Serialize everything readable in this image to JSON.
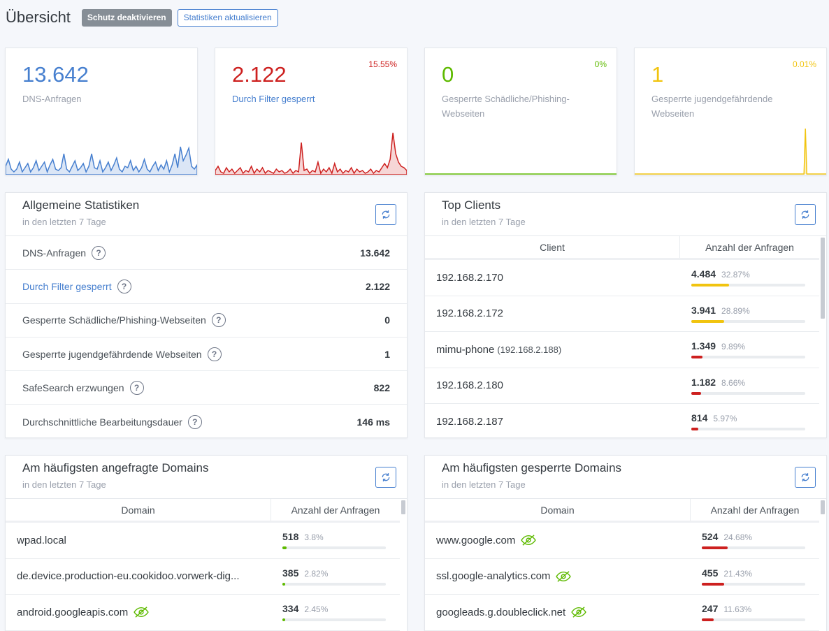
{
  "header": {
    "title": "Übersicht",
    "disable_protection": "Schutz deaktivieren",
    "refresh_stats": "Statistiken aktualisieren"
  },
  "stats": [
    {
      "value": "13.642",
      "label": "DNS-Anfragen",
      "percent": "",
      "color": "#467fcf"
    },
    {
      "value": "2.122",
      "label": "Durch Filter gesperrt",
      "percent": "15.55%",
      "color": "#cd201f"
    },
    {
      "value": "0",
      "label": "Gesperrte Schädliche/Phishing-Webseiten",
      "percent": "0%",
      "color": "#5eba00"
    },
    {
      "value": "1",
      "label": "Gesperrte jugendgefährdende Webseiten",
      "percent": "0.01%",
      "color": "#f1c40f"
    }
  ],
  "general": {
    "title": "Allgemeine Statistiken",
    "subtitle": "in den letzten 7 Tage",
    "rows": [
      {
        "label": "DNS-Anfragen",
        "value": "13.642"
      },
      {
        "label": "Durch Filter gesperrt",
        "value": "2.122"
      },
      {
        "label": "Gesperrte Schädliche/Phishing-Webseiten",
        "value": "0"
      },
      {
        "label": "Gesperrte jugendgefährdende Webseiten",
        "value": "1"
      },
      {
        "label": "SafeSearch erzwungen",
        "value": "822"
      },
      {
        "label": "Durchschnittliche Bearbeitungsdauer",
        "value": "146 ms"
      }
    ],
    "help": "?"
  },
  "clients": {
    "title": "Top Clients",
    "subtitle": "in den letzten 7 Tage",
    "col_client": "Client",
    "col_count": "Anzahl der Anfragen",
    "rows": [
      {
        "name": "192.168.2.170",
        "ip": "",
        "count": "4.484",
        "percent": "32.87%",
        "ratio": 0.3287,
        "color": "#f1c40f"
      },
      {
        "name": "192.168.2.172",
        "ip": "",
        "count": "3.941",
        "percent": "28.89%",
        "ratio": 0.2889,
        "color": "#f1c40f"
      },
      {
        "name": "mimu-phone",
        "ip": "(192.168.2.188)",
        "count": "1.349",
        "percent": "9.89%",
        "ratio": 0.0989,
        "color": "#cd201f"
      },
      {
        "name": "192.168.2.180",
        "ip": "",
        "count": "1.182",
        "percent": "8.66%",
        "ratio": 0.0866,
        "color": "#cd201f"
      },
      {
        "name": "192.168.2.187",
        "ip": "",
        "count": "814",
        "percent": "5.97%",
        "ratio": 0.0597,
        "color": "#cd201f"
      }
    ]
  },
  "top_domains": {
    "title": "Am häufigsten angefragte Domains",
    "subtitle": "in den letzten 7 Tage",
    "col_domain": "Domain",
    "col_count": "Anzahl der Anfragen",
    "rows": [
      {
        "name": "wpad.local",
        "count": "518",
        "percent": "3.8%",
        "ratio": 0.038,
        "color": "#5eba00",
        "eye": false
      },
      {
        "name": "de.device.production-eu.cookidoo.vorwerk-dig...",
        "count": "385",
        "percent": "2.82%",
        "ratio": 0.0282,
        "color": "#5eba00",
        "eye": false
      },
      {
        "name": "android.googleapis.com",
        "count": "334",
        "percent": "2.45%",
        "ratio": 0.0245,
        "color": "#5eba00",
        "eye": true
      }
    ]
  },
  "blocked_domains": {
    "title": "Am häufigsten gesperrte Domains",
    "subtitle": "in den letzten 7 Tage",
    "col_domain": "Domain",
    "col_count": "Anzahl der Anfragen",
    "rows": [
      {
        "name": "www.google.com",
        "count": "524",
        "percent": "24.68%",
        "ratio": 0.2468,
        "color": "#cd201f",
        "eye": true
      },
      {
        "name": "ssl.google-analytics.com",
        "count": "455",
        "percent": "21.43%",
        "ratio": 0.2143,
        "color": "#cd201f",
        "eye": true
      },
      {
        "name": "googleads.g.doubleclick.net",
        "count": "247",
        "percent": "11.63%",
        "ratio": 0.1163,
        "color": "#cd201f",
        "eye": true
      }
    ]
  }
}
